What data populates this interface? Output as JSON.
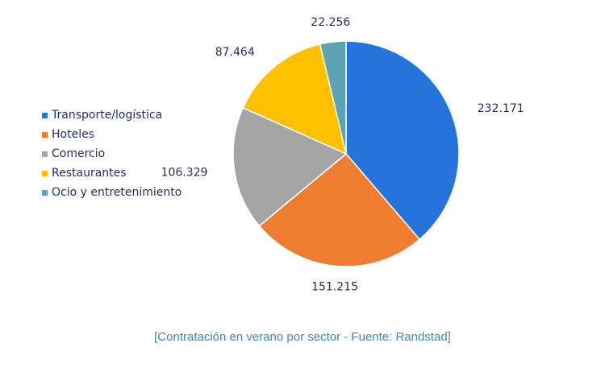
{
  "chart_data": {
    "type": "pie",
    "title": "",
    "categories": [
      "Transporte/logística",
      "Hoteles",
      "Comercio",
      "Restaurantes",
      "Ocio y entretenimiento"
    ],
    "values": [
      232171,
      151215,
      106329,
      87464,
      22256
    ],
    "value_labels": [
      "232.171",
      "151.215",
      "106.329",
      "87.464",
      "22.256"
    ],
    "colors": [
      "#2574db",
      "#ee7d31",
      "#a5a5a5",
      "#ffc000",
      "#5ea3b5"
    ],
    "legend_position": "left"
  },
  "caption": "[Contratación en verano por sector - Fuente: Randstad]"
}
